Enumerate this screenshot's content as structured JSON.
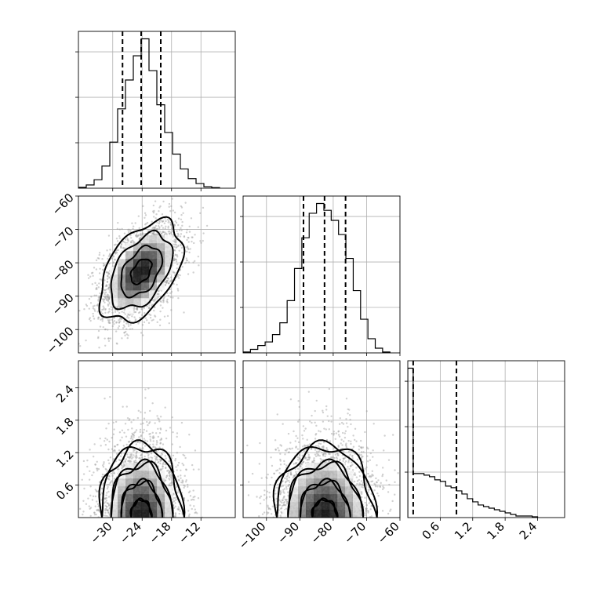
{
  "chart_data": {
    "type": "corner",
    "parameters": [
      {
        "label": "",
        "lim": [
          -37,
          -5
        ],
        "ticks": [
          -30,
          -24,
          -18,
          -12
        ],
        "quantiles": [
          -28,
          -24.2,
          -20.2
        ]
      },
      {
        "label": "",
        "lim": [
          -107,
          -60
        ],
        "ticks": [
          -100,
          -90,
          -80,
          -70,
          -60
        ],
        "quantiles": [
          -88.9,
          -82.6,
          -76.3
        ]
      },
      {
        "label": "",
        "lim": [
          0,
          2.9
        ],
        "ticks": [
          0.6,
          1.2,
          1.8,
          2.4
        ],
        "quantiles": [
          0.1,
          0.9
        ]
      }
    ],
    "marginal_histograms": [
      {
        "parameter": 0,
        "bin_edges": [
          -37,
          -35.4,
          -33.8,
          -32.2,
          -30.6,
          -29,
          -27.4,
          -25.8,
          -24.2,
          -22.6,
          -21,
          -19.4,
          -17.8,
          -16.2,
          -14.6,
          -13,
          -11.4,
          -9.8,
          -8.2
        ],
        "counts": [
          0.6,
          2.2,
          5.8,
          15.2,
          31.6,
          54.4,
          74.2,
          90.8,
          102.4,
          80.6,
          57.2,
          38.2,
          23.4,
          13.2,
          6.6,
          3.2,
          1.0,
          0.4
        ]
      },
      {
        "parameter": 1,
        "bin_edges": [
          -107,
          -104.8,
          -102.6,
          -100.4,
          -98.2,
          -96,
          -93.8,
          -91.6,
          -89.4,
          -87.2,
          -85,
          -82.8,
          -80.6,
          -78.4,
          -76.2,
          -74,
          -71.8,
          -69.6,
          -67.4,
          -65.2,
          -63
        ],
        "counts": [
          0.6,
          2.4,
          5.0,
          7.4,
          12.4,
          20.4,
          35.4,
          57.2,
          78.0,
          94.6,
          101.2,
          96.6,
          89.8,
          80.2,
          64.0,
          42.2,
          22.8,
          9.6,
          3.2,
          0.6
        ]
      },
      {
        "parameter": 2,
        "bin_edges": [
          0,
          0.1,
          0.2,
          0.3,
          0.4,
          0.5,
          0.6,
          0.7,
          0.8,
          0.9,
          1.0,
          1.1,
          1.2,
          1.3,
          1.4,
          1.5,
          1.6,
          1.7,
          1.8,
          1.9,
          2.0,
          2.1,
          2.2,
          2.3,
          2.4
        ],
        "counts": [
          95,
          28,
          28,
          27,
          26,
          24,
          23,
          20,
          19,
          17,
          15,
          12,
          10,
          8,
          7,
          6,
          5,
          4,
          3,
          2,
          1,
          1,
          1,
          0.5
        ]
      }
    ],
    "joint_densities": [
      {
        "x_parameter": 0,
        "y_parameter": 1,
        "center": [
          -24.2,
          -82.6
        ],
        "sigma": [
          4.2,
          7.5
        ],
        "correlation": 0.45,
        "sample_count": 2600
      },
      {
        "x_parameter": 0,
        "y_parameter": 2,
        "center": [
          -24.2,
          0
        ],
        "sigma": [
          4.2,
          0.7
        ],
        "correlation": 0,
        "sample_count": 2000,
        "half_normal_y": true
      },
      {
        "x_parameter": 1,
        "y_parameter": 2,
        "center": [
          -82.6,
          0
        ],
        "sigma": [
          7.5,
          0.7
        ],
        "correlation": 0,
        "sample_count": 2000,
        "half_normal_y": true
      }
    ],
    "contour_levels": [
      0.5,
      1.0,
      1.5,
      2.0
    ],
    "grid": true,
    "colors": {
      "line": "#000000",
      "grid": "#b0b0b0",
      "scatter": "#9a9a9a",
      "density_dark": "#000000",
      "density_light": "#ffffff"
    }
  }
}
